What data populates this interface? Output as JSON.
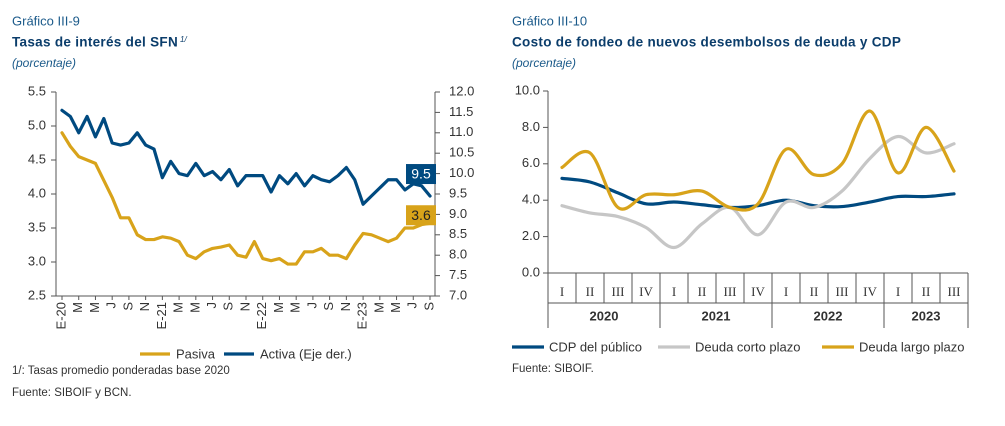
{
  "chart_data": [
    {
      "type": "line",
      "header": "Gráfico III-9",
      "title": "Tasas de interés del SFN",
      "title_note": "1/",
      "subtitle": "(porcentaje)",
      "categories": [
        "E-20",
        null,
        "M",
        null,
        "M",
        null,
        "J",
        null,
        "S",
        null,
        "N",
        null,
        "E-21",
        null,
        "M",
        null,
        "M",
        null,
        "J",
        null,
        "S",
        null,
        "N",
        null,
        "E-22",
        null,
        "M",
        null,
        "M",
        null,
        "J",
        null,
        "S",
        null,
        "N",
        null,
        "E-23",
        null,
        "M",
        null,
        "M",
        null,
        "J",
        null,
        "S"
      ],
      "series": [
        {
          "name": "Pasiva",
          "color": "#d8a31a",
          "axis": "y",
          "values": [
            4.9,
            4.7,
            4.55,
            4.5,
            4.45,
            4.2,
            3.95,
            3.65,
            3.65,
            3.4,
            3.33,
            3.33,
            3.37,
            3.35,
            3.3,
            3.1,
            3.05,
            3.15,
            3.2,
            3.22,
            3.25,
            3.1,
            3.07,
            3.3,
            3.05,
            3.02,
            3.05,
            2.97,
            2.97,
            3.15,
            3.15,
            3.2,
            3.1,
            3.1,
            3.05,
            3.25,
            3.42,
            3.4,
            3.35,
            3.3,
            3.35,
            3.5,
            3.5,
            3.55,
            3.57
          ],
          "value_labels": [
            null,
            null,
            null,
            null,
            null,
            null,
            null,
            null,
            null,
            null,
            null,
            null,
            null,
            null,
            null,
            null,
            null,
            null,
            null,
            null,
            null,
            null,
            null,
            null,
            null,
            null,
            null,
            null,
            null,
            null,
            null,
            null,
            null,
            null,
            null,
            null,
            null,
            null,
            null,
            null,
            null,
            null,
            null,
            null,
            "3.6"
          ]
        },
        {
          "name": "Activa (Eje der.)",
          "color": "#004a80",
          "axis": "y2",
          "values": [
            11.55,
            11.4,
            11.0,
            11.4,
            10.9,
            11.35,
            10.75,
            10.7,
            10.75,
            11.0,
            10.7,
            10.6,
            9.9,
            10.3,
            10.0,
            9.95,
            10.25,
            9.95,
            10.05,
            9.85,
            10.1,
            9.7,
            9.95,
            9.95,
            9.95,
            9.55,
            9.95,
            9.75,
            10.0,
            9.7,
            9.95,
            9.85,
            9.8,
            9.95,
            10.15,
            9.85,
            9.25,
            9.45,
            9.65,
            9.85,
            9.85,
            9.6,
            9.75,
            9.7,
            9.45
          ],
          "value_labels": [
            null,
            null,
            null,
            null,
            null,
            null,
            null,
            null,
            null,
            null,
            null,
            null,
            null,
            null,
            null,
            null,
            null,
            null,
            null,
            null,
            null,
            null,
            null,
            null,
            null,
            null,
            null,
            null,
            null,
            null,
            null,
            null,
            null,
            null,
            null,
            null,
            null,
            null,
            null,
            null,
            null,
            null,
            null,
            null,
            "9.5"
          ]
        }
      ],
      "ylim": [
        2.5,
        5.5
      ],
      "yticks": [
        2.5,
        {
          "value": 3,
          "label": "3.0"
        },
        3.5,
        {
          "value": 4,
          "label": "4.0"
        },
        4.5,
        {
          "value": 5,
          "label": "5.0"
        },
        5.5
      ],
      "y2lim": [
        7,
        12
      ],
      "y2ticks": [
        {
          "value": 7,
          "label": "7.0"
        },
        7.5,
        {
          "value": 8,
          "label": "8.0"
        },
        8.5,
        {
          "value": 9,
          "label": "9.0"
        },
        9.5,
        {
          "value": 10,
          "label": "10.0"
        },
        10.5,
        {
          "value": 11,
          "label": "11.0"
        },
        11.5,
        {
          "value": 12,
          "label": "12.0"
        }
      ],
      "grid": false,
      "notes": [
        "1/: Tasas promedio ponderadas base 2020",
        "Fuente: SIBOIF y BCN."
      ]
    },
    {
      "type": "line",
      "header": "Gráfico III-10",
      "title": "Costo de fondeo de nuevos desembolsos de deuda y CDP",
      "subtitle": "(porcentaje)",
      "categories": [
        "I",
        "II",
        "III",
        "IV",
        "I",
        "II",
        "III",
        "IV",
        "I",
        "II",
        "III",
        "IV",
        "I",
        "II",
        "III"
      ],
      "groups": [
        "2020",
        "2021",
        "2022",
        "2023"
      ],
      "series": [
        {
          "name": "CDP del público",
          "color": "#004a80",
          "values": [
            5.2,
            5.0,
            4.4,
            3.8,
            3.9,
            3.75,
            3.6,
            3.7,
            4.0,
            3.7,
            3.65,
            3.9,
            4.2,
            4.2,
            4.35
          ]
        },
        {
          "name": "Deuda corto plazo",
          "color": "#c6c6c6",
          "values": [
            3.7,
            3.3,
            3.1,
            2.5,
            1.4,
            2.7,
            3.6,
            2.1,
            3.9,
            3.6,
            4.5,
            6.3,
            7.5,
            6.6,
            7.1
          ]
        },
        {
          "name": "Deuda largo plazo",
          "color": "#d8a31a",
          "values": [
            5.8,
            6.6,
            3.6,
            4.3,
            4.3,
            4.5,
            3.6,
            3.8,
            6.8,
            5.4,
            6.0,
            8.9,
            5.5,
            8.0,
            5.6
          ]
        }
      ],
      "ylim": [
        0,
        10
      ],
      "yticks": [
        {
          "value": 0,
          "label": "0.0"
        },
        {
          "value": 2,
          "label": "2.0"
        },
        {
          "value": 4,
          "label": "4.0"
        },
        {
          "value": 6,
          "label": "6.0"
        },
        {
          "value": 8,
          "label": "8.0"
        },
        {
          "value": 10,
          "label": "10.0"
        }
      ],
      "grid": false,
      "smooth": true,
      "notes": [
        "Fuente: SIBOIF."
      ]
    }
  ]
}
